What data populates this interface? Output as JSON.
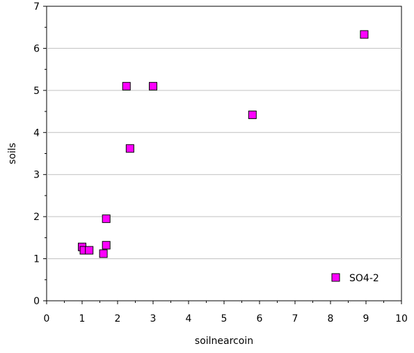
{
  "chart_data": {
    "type": "scatter",
    "title": "",
    "xlabel": "soilnearcoin",
    "ylabel": "soils",
    "xlim": [
      0,
      10
    ],
    "ylim": [
      0,
      7
    ],
    "xticks": [
      "0",
      "1",
      "2",
      "3",
      "4",
      "5",
      "6",
      "7",
      "8",
      "9",
      "10"
    ],
    "yticks": [
      "0",
      "1",
      "2",
      "3",
      "4",
      "5",
      "6",
      "7"
    ],
    "grid": "horizontal",
    "legend": "bottom-right",
    "series": [
      {
        "name": "SO4-2",
        "color": "#ff00ff",
        "marker": "square",
        "x": [
          1.0,
          1.05,
          1.2,
          1.6,
          1.68,
          1.68,
          2.25,
          2.35,
          3.0,
          5.8,
          8.95
        ],
        "y": [
          1.28,
          1.2,
          1.2,
          1.12,
          1.32,
          1.95,
          5.1,
          3.62,
          5.1,
          4.42,
          6.33
        ]
      }
    ]
  }
}
